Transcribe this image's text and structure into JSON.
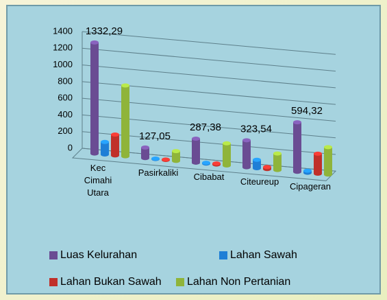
{
  "chart_data": {
    "type": "bar3d",
    "categories": [
      "Kec Cimahi Utara",
      "Pasirkaliki",
      "Cibabat",
      "Citeureup",
      "Cipageran"
    ],
    "series": [
      {
        "name": "Luas Kelurahan",
        "color": "#6a4c93",
        "values": [
          1332.29,
          127.05,
          287.38,
          323.54,
          594.32
        ],
        "value_labels": [
          "1332,29",
          "127,05",
          "287,38",
          "323,54",
          "594,32"
        ]
      },
      {
        "name": "Lahan Sawah",
        "color": "#1f7fd6",
        "values": [
          150,
          5,
          10,
          100,
          25
        ]
      },
      {
        "name": "Lahan Bukan Sawah",
        "color": "#c0302a",
        "values": [
          250,
          5,
          12,
          25,
          240
        ]
      },
      {
        "name": "Lahan Non Pertanian",
        "color": "#8fb43a",
        "values": [
          850,
          117,
          265,
          198,
          329
        ]
      }
    ],
    "ylim": [
      0,
      1400
    ],
    "yticks": [
      0,
      200,
      400,
      600,
      800,
      1000,
      1200,
      1400
    ],
    "grid": true,
    "legend": "bottom"
  }
}
